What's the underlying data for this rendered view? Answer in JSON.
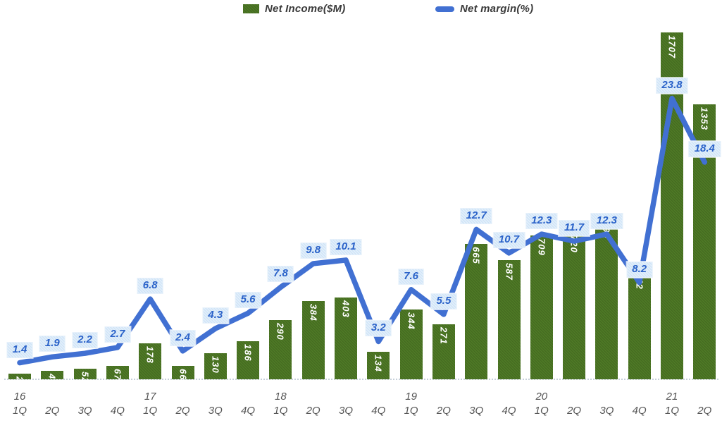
{
  "legend": {
    "items": [
      {
        "label": "Net Income($M)",
        "swatch": "green-bar-swatch",
        "color": "#4f7b26"
      },
      {
        "label": "Net margin(%)",
        "swatch": "blue-line-swatch",
        "color": "#4170d2"
      }
    ]
  },
  "colors": {
    "bar_green": "#4f7b26",
    "line_blue": "#4170d2",
    "margin_label_box_bg": "#cfe4f7",
    "margin_label_text": "#2a62c9",
    "bar_label_text": "#ffffff",
    "axis_text": "#545454",
    "legend_text": "#3a3a3a",
    "baseline_dots": "#c6d0d9"
  },
  "chart_data": {
    "type": "bar",
    "subtype": "bar-line-combo",
    "title": "",
    "xlabel": "",
    "ylabel": "",
    "legend_position": "top",
    "gridlines": false,
    "baseline_style": "dotted",
    "years_row": [
      "16",
      "",
      "",
      "",
      "17",
      "",
      "",
      "",
      "18",
      "",
      "",
      "",
      "19",
      "",
      "",
      "",
      "20",
      "",
      "",
      "",
      "21",
      ""
    ],
    "categories": [
      "1Q",
      "2Q",
      "3Q",
      "4Q",
      "1Q",
      "2Q",
      "3Q",
      "4Q",
      "1Q",
      "2Q",
      "3Q",
      "4Q",
      "1Q",
      "2Q",
      "3Q",
      "4Q",
      "1Q",
      "2Q",
      "3Q",
      "4Q",
      "1Q",
      "2Q"
    ],
    "series": [
      {
        "name": "Net Income($M)",
        "type": "bar",
        "axis": "primary",
        "values": [
          28,
          41,
          52,
          67,
          178,
          66,
          130,
          186,
          290,
          384,
          403,
          134,
          344,
          271,
          665,
          587,
          709,
          720,
          790,
          542,
          1707,
          1353
        ]
      },
      {
        "name": "Net margin(%)",
        "type": "line",
        "axis": "secondary",
        "values": [
          1.4,
          1.9,
          2.2,
          2.7,
          6.8,
          2.4,
          4.3,
          5.6,
          7.8,
          9.8,
          10.1,
          3.2,
          7.6,
          5.5,
          12.7,
          10.7,
          12.3,
          11.7,
          12.3,
          8.2,
          23.8,
          18.4
        ]
      }
    ]
  }
}
